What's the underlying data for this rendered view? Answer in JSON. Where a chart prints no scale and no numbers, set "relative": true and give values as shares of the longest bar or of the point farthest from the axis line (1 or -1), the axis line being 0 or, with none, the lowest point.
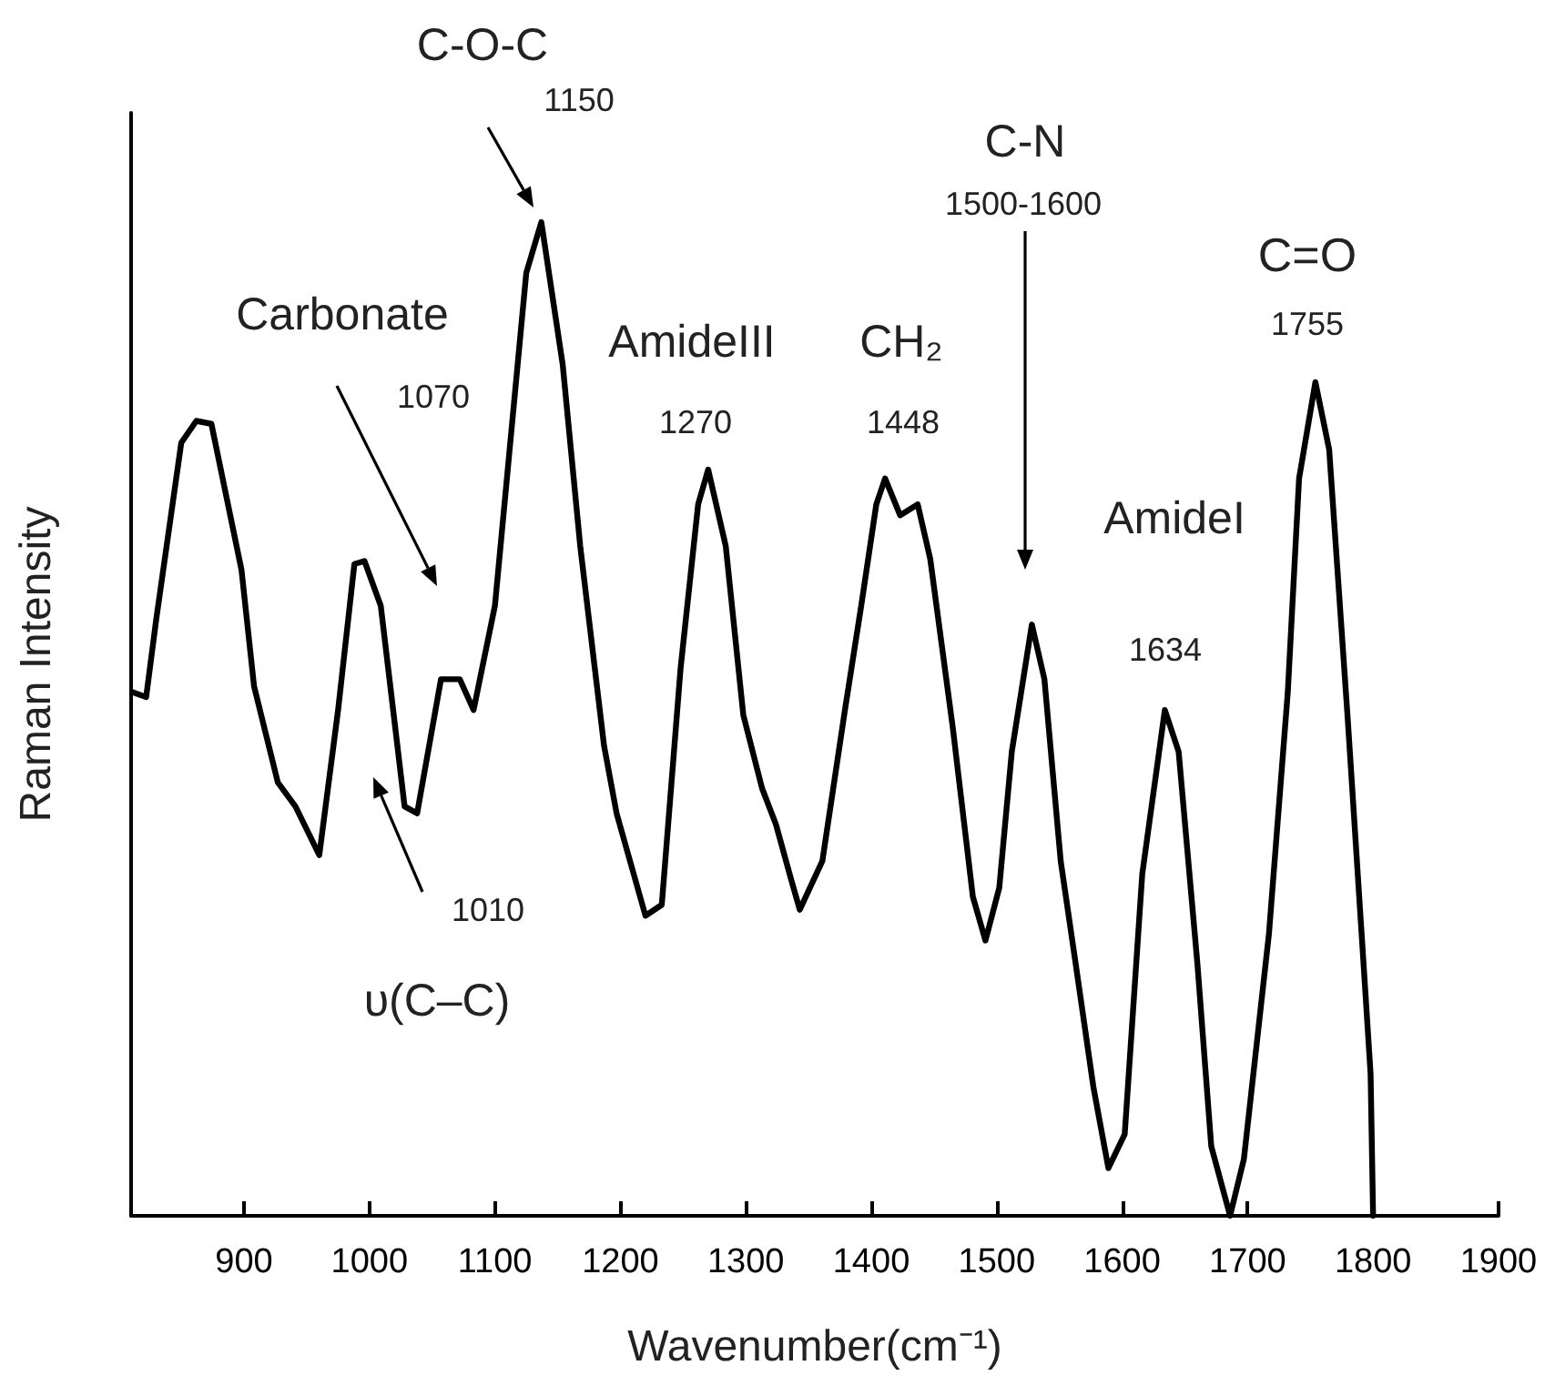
{
  "chart_data": {
    "type": "line",
    "relative": true,
    "xlabel": "Wavenumber(cm⁻¹)",
    "ylabel": "Raman Intensity",
    "xlim": [
      810,
      1900
    ],
    "xticks": [
      900,
      1000,
      1100,
      1200,
      1300,
      1400,
      1500,
      1600,
      1700,
      1800,
      1900
    ],
    "grid": false,
    "marker": "none",
    "line_style": "solid",
    "series": [
      {
        "color": "#000000",
        "x": [
          811,
          822,
          830,
          850,
          862,
          874,
          898,
          908,
          927,
          941,
          960,
          975,
          988,
          996,
          1009,
          1028,
          1038,
          1057,
          1072,
          1083,
          1100,
          1125,
          1137,
          1154,
          1168,
          1187,
          1197,
          1220,
          1233,
          1248,
          1262,
          1270,
          1284,
          1298,
          1313,
          1324,
          1336,
          1343,
          1361,
          1379,
          1392,
          1404,
          1411,
          1423,
          1437,
          1447,
          1465,
          1481,
          1491,
          1502,
          1512,
          1528,
          1538,
          1551,
          1563,
          1577,
          1589,
          1602,
          1616,
          1634,
          1645,
          1660,
          1671,
          1686,
          1697,
          1717,
          1732,
          1741,
          1754,
          1765,
          1780,
          1794,
          1798,
          1800
        ],
        "values": [
          0.527,
          0.522,
          0.6,
          0.778,
          0.8,
          0.797,
          0.65,
          0.533,
          0.436,
          0.412,
          0.363,
          0.509,
          0.656,
          0.659,
          0.614,
          0.412,
          0.405,
          0.54,
          0.54,
          0.509,
          0.614,
          0.949,
          1,
          0.857,
          0.674,
          0.473,
          0.405,
          0.302,
          0.313,
          0.551,
          0.716,
          0.751,
          0.674,
          0.504,
          0.43,
          0.394,
          0.339,
          0.308,
          0.357,
          0.509,
          0.614,
          0.716,
          0.742,
          0.705,
          0.716,
          0.661,
          0.491,
          0.321,
          0.277,
          0.33,
          0.467,
          0.595,
          0.54,
          0.357,
          0.253,
          0.13,
          0.048,
          0.082,
          0.344,
          0.509,
          0.467,
          0.253,
          0.07,
          0,
          0.057,
          0.284,
          0.527,
          0.742,
          0.839,
          0.771,
          0.496,
          0.222,
          0.143,
          0
        ]
      }
    ],
    "annotations": [
      "C-O-C",
      "1150",
      "Carbonate",
      "1070",
      "AmideIII",
      "1270",
      "CH₂",
      "1448",
      "C-N",
      "1500-1600",
      "AmideI",
      "1634",
      "C=O",
      "1755",
      "1010",
      "υ(C–C)"
    ]
  }
}
